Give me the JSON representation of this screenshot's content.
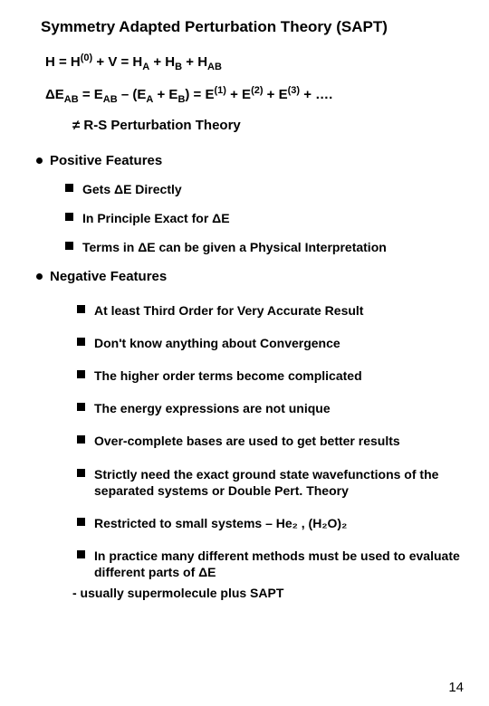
{
  "title": "Symmetry Adapted Perturbation Theory (SAPT)",
  "eq1_parts": {
    "a": "H = H",
    "b": "(0)",
    "c": " + V = H",
    "d": "A",
    "e": " + H",
    "f": "B",
    "g": " + H",
    "h": "AB"
  },
  "eq2_parts": {
    "a": "ΔE",
    "b": "AB",
    "c": " = E",
    "d": "AB",
    "e": " – (E",
    "f": "A",
    "g": " + E",
    "h": "B",
    "i": ") = E",
    "j": "(1)",
    "k": " + E",
    "l": "(2)",
    "m": " + E",
    "n": "(3)",
    "o": " + …."
  },
  "neq_parts": {
    "a": "≠ ",
    "b": "R-S Perturbation Theory"
  },
  "positive": {
    "header": "Positive Features",
    "items": [
      "Gets ΔE Directly",
      "In Principle Exact for ΔE",
      "Terms in ΔE can be given a Physical Interpretation"
    ]
  },
  "negative": {
    "header": "Negative Features",
    "items": [
      "At least Third Order for Very Accurate Result",
      "Don't know anything about Convergence",
      "The higher order terms become complicated",
      "The energy expressions are not unique",
      "Over-complete bases are used to get better results",
      "Strictly need the exact ground state wavefunctions of the separated systems or Double Pert. Theory",
      "Restricted to small systems – He₂ , (H₂O)₂",
      "In practice many different methods must be used to evaluate different parts of ΔE"
    ],
    "note": "- usually supermolecule plus SAPT"
  },
  "page_number": "14"
}
